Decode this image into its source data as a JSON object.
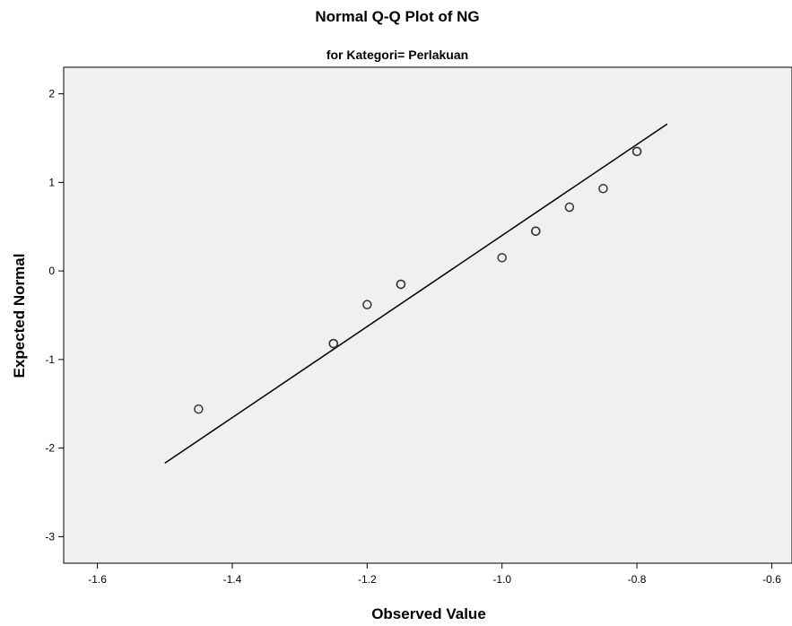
{
  "chart_data": {
    "type": "scatter",
    "title": "Normal Q-Q Plot of NG",
    "subtitle": "for Kategori= Perlakuan",
    "xlabel": "Observed Value",
    "ylabel": "Expected Normal",
    "xlim": [
      -1.65,
      -0.57
    ],
    "ylim": [
      -3.3,
      2.3
    ],
    "xticks": [
      -1.6,
      -1.4,
      -1.2,
      -1.0,
      -0.8,
      -0.6
    ],
    "xtick_labels": [
      "-1.6",
      "-1.4",
      "-1.2",
      "-1.0",
      "-0.8",
      "-0.6"
    ],
    "yticks": [
      2,
      1,
      0,
      -1,
      -2,
      -3
    ],
    "ytick_labels": [
      "2",
      "1",
      "0",
      "-1",
      "-2",
      "-3"
    ],
    "grid": false,
    "legend": "none",
    "points": [
      {
        "x": -1.45,
        "y": -1.56
      },
      {
        "x": -1.25,
        "y": -0.82
      },
      {
        "x": -1.25,
        "y": -0.82
      },
      {
        "x": -1.2,
        "y": -0.38
      },
      {
        "x": -1.15,
        "y": -0.15
      },
      {
        "x": -1.15,
        "y": -0.15
      },
      {
        "x": -1.0,
        "y": 0.15
      },
      {
        "x": -0.95,
        "y": 0.45
      },
      {
        "x": -0.95,
        "y": 0.45
      },
      {
        "x": -0.9,
        "y": 0.72
      },
      {
        "x": -0.85,
        "y": 0.93
      },
      {
        "x": -0.8,
        "y": 1.35
      },
      {
        "x": -0.8,
        "y": 1.35
      }
    ],
    "reference_line": {
      "x": [
        -1.5,
        -0.755
      ],
      "y": [
        -2.17,
        1.66
      ]
    },
    "colors": {
      "plot_background": "#f0f0f0",
      "frame": "#000000",
      "marker_stroke": "#333333",
      "line": "#000000"
    }
  }
}
